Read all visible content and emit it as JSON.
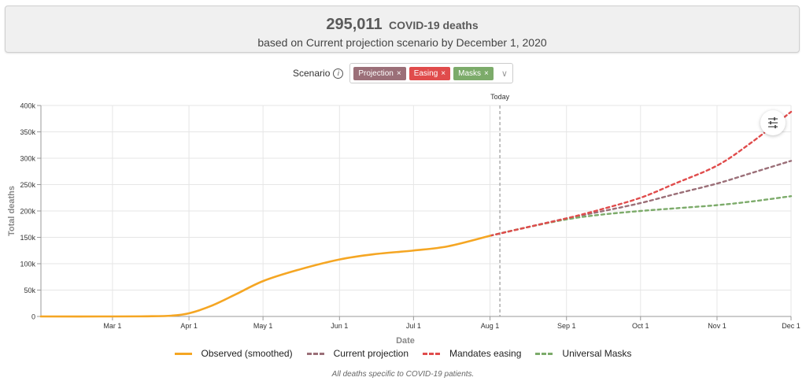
{
  "summary": {
    "number": "295,011",
    "label": "COVID-19 deaths",
    "subtitle": "based on Current projection scenario by December 1, 2020"
  },
  "scenario": {
    "label": "Scenario",
    "info_icon": "info-icon",
    "chips": [
      {
        "label": "Projection",
        "color": "#9b6f78"
      },
      {
        "label": "Easing",
        "color": "#e04c4c"
      },
      {
        "label": "Masks",
        "color": "#7cab6a"
      }
    ],
    "remove_glyph": "×",
    "dropdown_icon": "chevron-down-icon",
    "settings_icon": "sliders-icon"
  },
  "chart_data": {
    "type": "line",
    "xlabel": "Date",
    "ylabel": "Total deaths",
    "xlim": [
      "2020-02-01",
      "2020-12-01"
    ],
    "ylim": [
      0,
      400000
    ],
    "y_ticks": [
      0,
      50000,
      100000,
      150000,
      200000,
      250000,
      300000,
      350000,
      400000
    ],
    "y_tick_labels": [
      "0",
      "50k",
      "100k",
      "150k",
      "200k",
      "250k",
      "300k",
      "350k",
      "400k"
    ],
    "x_ticks": [
      "2020-03-01",
      "2020-04-01",
      "2020-05-01",
      "2020-06-01",
      "2020-07-01",
      "2020-08-01",
      "2020-09-01",
      "2020-10-01",
      "2020-11-01",
      "2020-12-01"
    ],
    "x_tick_labels": [
      "Mar 1",
      "Apr 1",
      "May 1",
      "Jun 1",
      "Jul 1",
      "Aug 1",
      "Sep 1",
      "Oct 1",
      "Nov 1",
      "Dec 1"
    ],
    "grid": true,
    "marker": {
      "label": "Today",
      "date": "2020-08-05"
    },
    "series": [
      {
        "name": "Observed (smoothed)",
        "color": "#f5a623",
        "dash": false,
        "x": [
          "2020-02-01",
          "2020-03-01",
          "2020-03-15",
          "2020-03-25",
          "2020-04-01",
          "2020-04-10",
          "2020-04-20",
          "2020-05-01",
          "2020-05-15",
          "2020-06-01",
          "2020-06-15",
          "2020-07-01",
          "2020-07-15",
          "2020-08-01"
        ],
        "y": [
          0,
          0,
          300,
          1500,
          6000,
          20000,
          42000,
          67000,
          88000,
          108000,
          118000,
          125000,
          133000,
          153000
        ]
      },
      {
        "name": "Current projection",
        "color": "#9b6f78",
        "dash": true,
        "x": [
          "2020-08-01",
          "2020-08-15",
          "2020-09-01",
          "2020-09-15",
          "2020-10-01",
          "2020-10-15",
          "2020-11-01",
          "2020-11-15",
          "2020-12-01"
        ],
        "y": [
          153000,
          168000,
          186000,
          199000,
          215000,
          232000,
          252000,
          272000,
          295011
        ]
      },
      {
        "name": "Mandates easing",
        "color": "#e04c4c",
        "dash": true,
        "x": [
          "2020-08-01",
          "2020-08-15",
          "2020-09-01",
          "2020-09-15",
          "2020-10-01",
          "2020-10-15",
          "2020-11-01",
          "2020-11-15",
          "2020-12-01"
        ],
        "y": [
          153000,
          168000,
          186000,
          203000,
          225000,
          252000,
          286000,
          330000,
          388000
        ]
      },
      {
        "name": "Universal Masks",
        "color": "#7cab6a",
        "dash": true,
        "x": [
          "2020-08-01",
          "2020-08-15",
          "2020-09-01",
          "2020-09-15",
          "2020-10-01",
          "2020-10-15",
          "2020-11-01",
          "2020-11-15",
          "2020-12-01"
        ],
        "y": [
          153000,
          168000,
          184000,
          193000,
          200000,
          205000,
          211000,
          218000,
          228000
        ]
      }
    ]
  },
  "legend": [
    {
      "label": "Observed (smoothed)",
      "color": "#f5a623",
      "style": "solid"
    },
    {
      "label": "Current projection",
      "color": "#9b6f78",
      "style": "dashed"
    },
    {
      "label": "Mandates easing",
      "color": "#e04c4c",
      "style": "dashed"
    },
    {
      "label": "Universal Masks",
      "color": "#7cab6a",
      "style": "dashed"
    }
  ],
  "footnote": "All deaths specific to COVID-19 patients."
}
